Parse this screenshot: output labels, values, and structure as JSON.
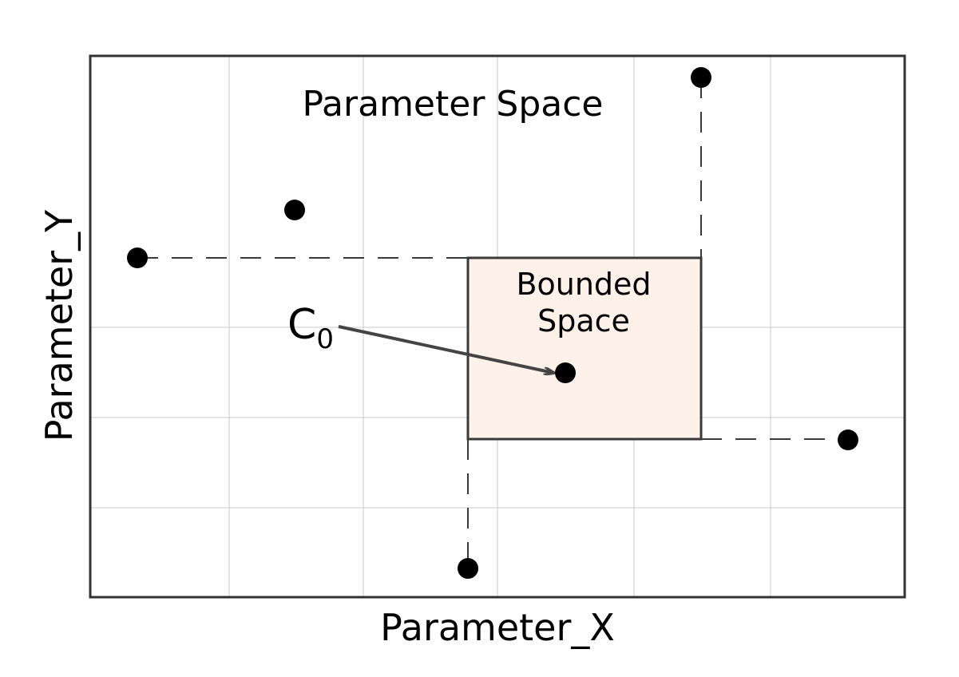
{
  "title": "Parameter Space",
  "x_axis_label": "Parameter_X",
  "y_axis_label": "Parameter_Y",
  "region": {
    "label_line1": "Bounded",
    "label_line2": "Space"
  },
  "origin_point": {
    "label_main": "C",
    "label_sub": "0"
  },
  "colors": {
    "frame": "#333333",
    "grid": "#c8c8c8",
    "region_fill": "#fdf1ea",
    "region_stroke": "#3a3a3a",
    "dashes": "#3a3a3a",
    "points": "#000000",
    "arrow": "#444444"
  }
}
